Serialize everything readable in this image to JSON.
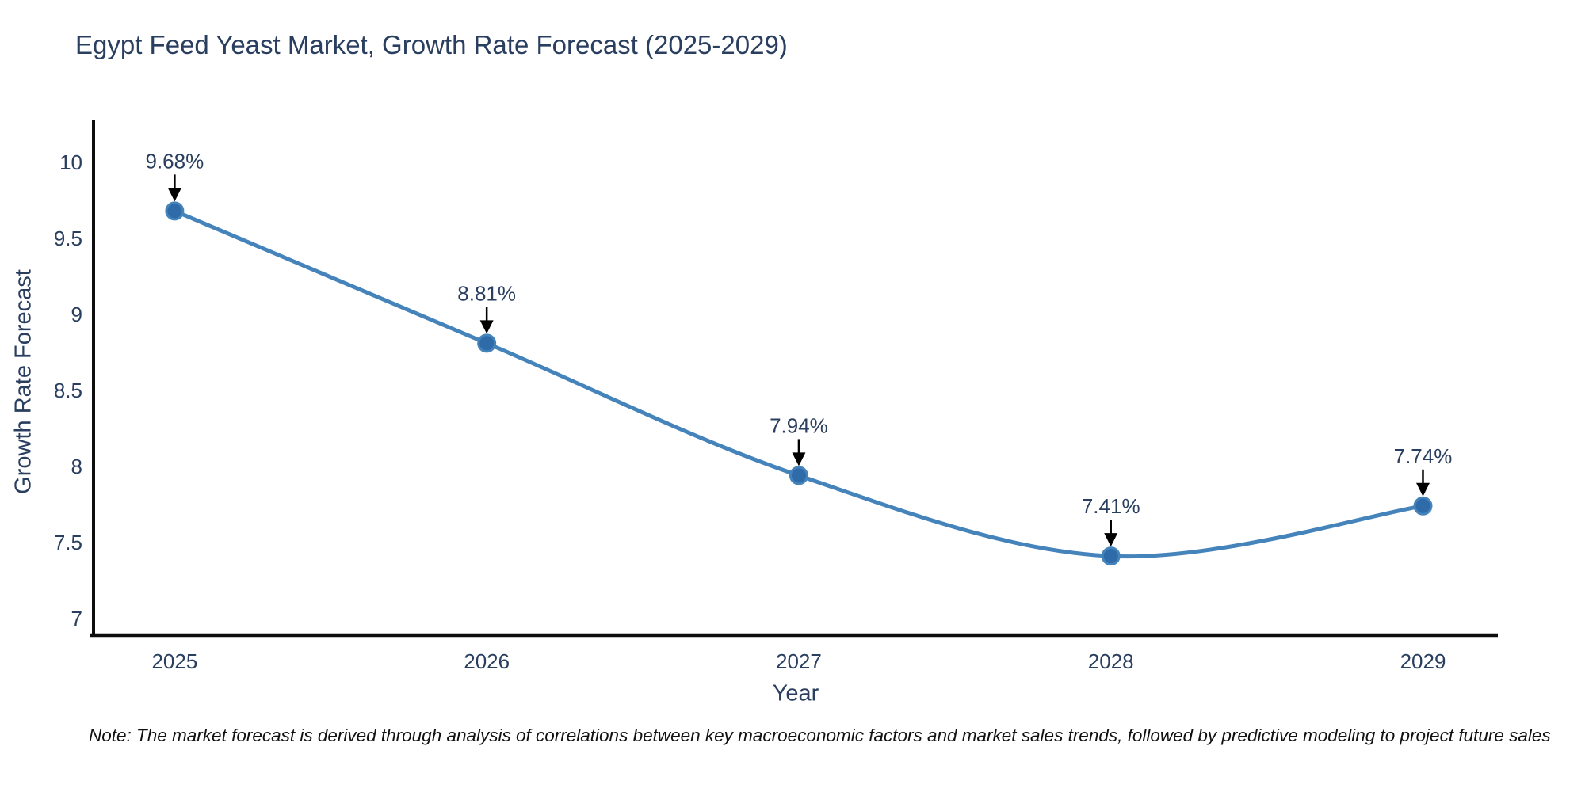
{
  "note": "Note: The market forecast is derived through analysis of correlations between key macroeconomic factors and market sales trends, followed by predictive modeling to project future sales",
  "colors": {
    "text": "#2a3f5f",
    "axis_line": "#0d0d0d",
    "series_line": "#4583bb",
    "marker_fill": "#2f6ba8",
    "annotation_text": "#2a3f5f",
    "annotation_arrow": "#000000",
    "background": "#ffffff",
    "note_text": "#111111"
  },
  "chart_data": {
    "type": "line",
    "title": "Egypt Feed Yeast Market, Growth Rate Forecast (2025-2029)",
    "xlabel": "Year",
    "ylabel": "Growth Rate Forecast",
    "x": [
      2025,
      2026,
      2027,
      2028,
      2029
    ],
    "values": [
      9.68,
      8.81,
      7.94,
      7.41,
      7.74
    ],
    "point_labels": [
      "9.68%",
      "8.81%",
      "7.94%",
      "7.41%",
      "7.74%"
    ],
    "x_tick_labels": [
      "2025",
      "2026",
      "2027",
      "2028",
      "2029"
    ],
    "y_ticks": [
      7,
      7.5,
      8,
      8.5,
      9,
      9.5,
      10
    ],
    "y_tick_labels": [
      "7",
      "7.5",
      "8",
      "8.5",
      "9",
      "9.5",
      "10"
    ],
    "xlim": [
      2024.74,
      2029.24
    ],
    "ylim": [
      6.89,
      10.26
    ],
    "line_shape": "spline",
    "grid": false,
    "legend": false,
    "annotations_have_arrows": true
  }
}
